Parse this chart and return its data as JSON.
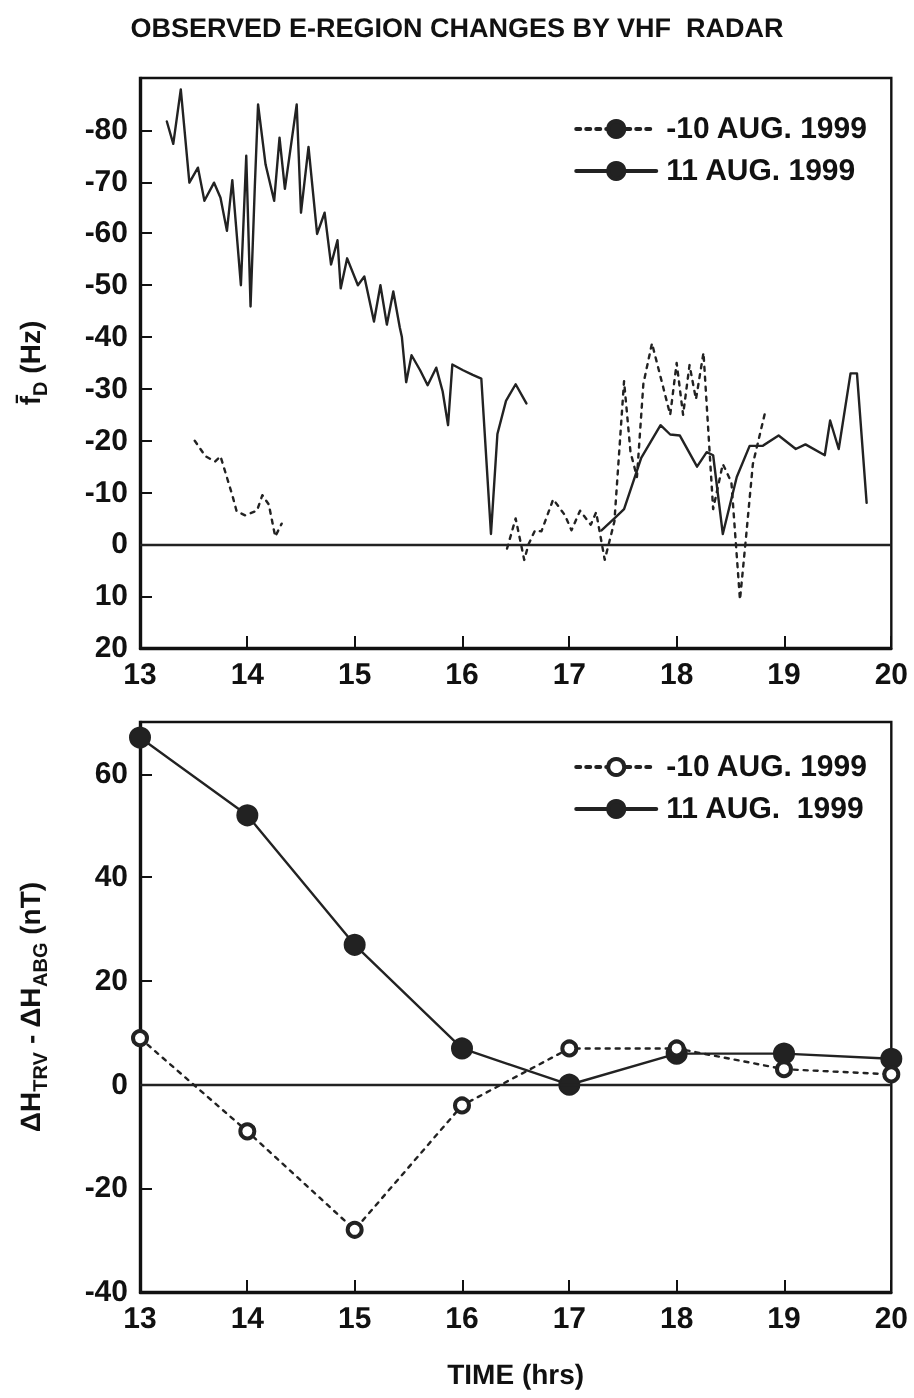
{
  "chart_data": [
    {
      "type": "line",
      "title": "OBSERVED E-REGION CHANGES BY VHF  RADAR",
      "ylabel": "f̄$_{D}$ (Hz)",
      "xlim": [
        13,
        20
      ],
      "xticks": [
        13,
        14,
        15,
        16,
        17,
        18,
        19,
        20
      ],
      "ylim": [
        20,
        -90
      ],
      "yticks": [
        20,
        10,
        0,
        -10,
        -20,
        -30,
        -40,
        -50,
        -60,
        -70,
        -80
      ],
      "grid": false,
      "legend": "top right",
      "marker": "none",
      "ref_lines": [
        {
          "axis": "y",
          "value": 0,
          "color": "#222222",
          "line_style": "solid"
        }
      ],
      "series": [
        {
          "name": "-10 AUG. 1999",
          "color": "#222222",
          "line_style": "dotted",
          "x": [
            13.51,
            13.61,
            13.7,
            13.75,
            13.86,
            13.9,
            13.98,
            14.09,
            14.14,
            14.2,
            14.26,
            14.32,
            15.4,
            16.42,
            16.5,
            16.58,
            16.62,
            16.68,
            16.74,
            16.85,
            16.96,
            17.02,
            17.1,
            17.2,
            17.25,
            17.33,
            17.42,
            17.51,
            17.57,
            17.63,
            17.69,
            17.77,
            17.86,
            17.94,
            18.0,
            18.06,
            18.12,
            18.18,
            18.25,
            18.34,
            18.43,
            18.51,
            18.59,
            18.64,
            18.71,
            18.83
          ],
          "values": [
            -20,
            -17,
            -16,
            -17,
            -9.5,
            -6.4,
            -5.6,
            -6.5,
            -9.5,
            -7.7,
            -1.5,
            -4,
            null,
            0.8,
            -5,
            3,
            0,
            -2.7,
            -2.5,
            -8.7,
            -5.6,
            -2.7,
            -6.5,
            -3.8,
            -6.2,
            3,
            -4.4,
            -31.5,
            -17.8,
            -13,
            -31,
            -38.8,
            -31.5,
            -25,
            -35,
            -25,
            -34.6,
            -28,
            -37,
            -6.8,
            -15.5,
            -12,
            10.7,
            0,
            -15.5,
            -26
          ]
        },
        {
          "name": "11 AUG. 1999",
          "color": "#222222",
          "line_style": "solid",
          "x": [
            13.25,
            13.31,
            13.38,
            13.46,
            13.54,
            13.6,
            13.69,
            13.75,
            13.81,
            13.86,
            13.94,
            13.99,
            14.03,
            14.07,
            14.1,
            14.17,
            14.25,
            14.3,
            14.35,
            14.46,
            14.5,
            14.57,
            14.65,
            14.72,
            14.78,
            14.84,
            14.87,
            14.93,
            15.03,
            15.09,
            15.18,
            15.24,
            15.3,
            15.36,
            15.42,
            15.44,
            15.48,
            15.53,
            15.61,
            15.68,
            15.76,
            15.82,
            15.87,
            15.91,
            16.01,
            16.1,
            16.18,
            16.27,
            16.33,
            16.41,
            16.5,
            16.6,
            17.0,
            17.3,
            17.42,
            17.51,
            17.67,
            17.85,
            17.94,
            18.03,
            18.19,
            18.28,
            18.34,
            18.43,
            18.56,
            18.68,
            18.8,
            18.95,
            19.11,
            19.2,
            19.38,
            19.43,
            19.51,
            19.62,
            19.68,
            19.77
          ],
          "values": [
            -81.6,
            -77.3,
            -87.8,
            -69.8,
            -72.7,
            -66.3,
            -69.8,
            -66.9,
            -60.5,
            -70.3,
            -50,
            -75,
            -45.9,
            -69.2,
            -84.9,
            -73.3,
            -66.3,
            -78.5,
            -68.6,
            -84.9,
            -64,
            -76.7,
            -59.9,
            -64,
            -54,
            -58.7,
            -49.4,
            -55.2,
            -50,
            -51.7,
            -43,
            -50,
            -42.4,
            -48.8,
            -41.9,
            -40,
            -31.3,
            -36.5,
            -33.6,
            -30.7,
            -34.1,
            -29.5,
            -23,
            -34.7,
            -33.6,
            -32.7,
            -32,
            -2,
            -21.3,
            -27.7,
            -30.9,
            -27.2,
            null,
            -2.7,
            -5,
            -6.8,
            -16.7,
            -23,
            -21.2,
            -21,
            -15,
            -17.8,
            -17.2,
            -2,
            -13,
            -19,
            -19,
            -21,
            -18.4,
            -19.3,
            -17.2,
            -23.9,
            -18.4,
            -33,
            -33,
            -8
          ]
        }
      ]
    },
    {
      "type": "line",
      "xlabel": "TIME (hrs)",
      "ylabel": "ΔH$_{TRV}$ - ΔH$_{ABG}$ (nT)",
      "xlim": [
        13,
        20
      ],
      "xticks": [
        13,
        14,
        15,
        16,
        17,
        18,
        19,
        20
      ],
      "ylim": [
        -40,
        70
      ],
      "yticks": [
        -40,
        -20,
        0,
        20,
        40,
        60
      ],
      "grid": false,
      "legend": "top right",
      "marker": "circle",
      "ref_lines": [
        {
          "axis": "y",
          "value": 0,
          "color": "#222222",
          "line_style": "solid"
        }
      ],
      "series": [
        {
          "name": "-10 AUG. 1999",
          "color": "#222222",
          "line_style": "dotted",
          "x": [
            13,
            14,
            15,
            16,
            17,
            18,
            19,
            20
          ],
          "values": [
            9,
            -9,
            -28,
            -4,
            7,
            7,
            3,
            2
          ]
        },
        {
          "name": "11 AUG.  1999",
          "color": "#222222",
          "line_style": "solid",
          "x": [
            13,
            14,
            15,
            16,
            17,
            18,
            19,
            20
          ],
          "values": [
            67,
            52,
            27,
            7,
            0,
            6,
            6,
            5
          ]
        }
      ]
    }
  ]
}
